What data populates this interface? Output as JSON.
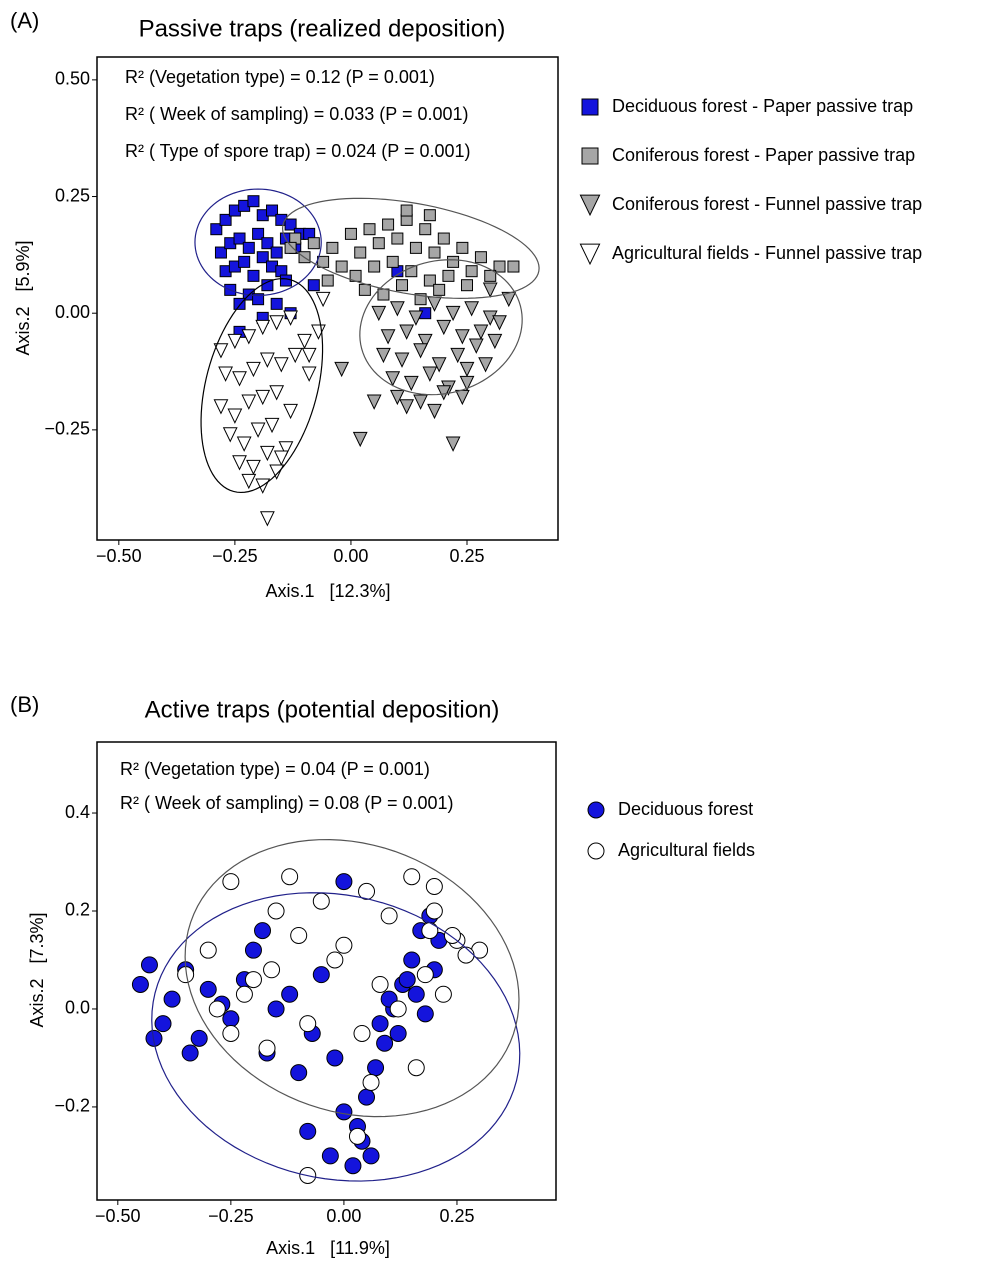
{
  "chart_data": [
    {
      "type": "scatter",
      "panel_label": "(A)",
      "title": "Passive traps (realized deposition)",
      "x_label": "Axis.1   [12.3%]",
      "y_label": "Axis.2   [5.9%]",
      "annotations": [
        "R² (Vegetation type) = 0.12 (P = 0.001)",
        "R² ( Week of sampling) = 0.033 (P = 0.001)",
        "R² ( Type of spore trap) = 0.024 (P = 0.001)"
      ],
      "xlim": [
        -0.547,
        0.446
      ],
      "ylim": [
        -0.486,
        0.549
      ],
      "xticks": [
        {
          "value": -0.5,
          "label": "−0.50"
        },
        {
          "value": -0.25,
          "label": "−0.25"
        },
        {
          "value": 0,
          "label": "0.00"
        },
        {
          "value": 0.25,
          "label": "0.25"
        }
      ],
      "yticks": [
        {
          "value": -0.25,
          "label": "−0.25"
        },
        {
          "value": 0,
          "label": "0.00"
        },
        {
          "value": 0.25,
          "label": "0.25"
        },
        {
          "value": 0.5,
          "label": "0.50"
        }
      ],
      "grid": false,
      "legend": "right",
      "series": [
        {
          "name": "Deciduous forest - Paper passive trap",
          "marker": "square",
          "color": "#1414dc",
          "x": [
            -0.29,
            -0.27,
            -0.25,
            -0.23,
            -0.21,
            -0.19,
            -0.17,
            -0.15,
            -0.13,
            -0.11,
            -0.28,
            -0.26,
            -0.24,
            -0.22,
            -0.2,
            -0.18,
            -0.16,
            -0.14,
            -0.12,
            -0.27,
            -0.25,
            -0.23,
            -0.21,
            -0.19,
            -0.17,
            -0.15,
            -0.26,
            -0.22,
            -0.18,
            -0.14,
            -0.2,
            -0.24,
            -0.16,
            -0.09,
            -0.24,
            -0.19,
            -0.13,
            0.1,
            -0.08,
            0.16
          ],
          "y": [
            0.18,
            0.2,
            0.22,
            0.23,
            0.24,
            0.21,
            0.22,
            0.2,
            0.19,
            0.17,
            0.13,
            0.15,
            0.16,
            0.14,
            0.17,
            0.15,
            0.13,
            0.16,
            0.14,
            0.09,
            0.1,
            0.11,
            0.08,
            0.12,
            0.1,
            0.09,
            0.05,
            0.04,
            0.06,
            0.07,
            0.03,
            0.02,
            0.02,
            0.17,
            -0.04,
            -0.01,
            0.0,
            0.09,
            0.06,
            0.0
          ],
          "ellipse": {
            "cx": -0.2,
            "cy": 0.152,
            "rx": 0.136,
            "ry": 0.114,
            "angle": 0,
            "color": "#20208a"
          }
        },
        {
          "name": "Coniferous forest - Paper passive trap",
          "marker": "square",
          "color": "#a6a6a6",
          "x": [
            -0.12,
            -0.08,
            -0.04,
            0.0,
            0.04,
            0.08,
            0.12,
            0.16,
            0.2,
            0.24,
            0.28,
            0.32,
            -0.1,
            -0.06,
            -0.02,
            0.02,
            0.06,
            0.1,
            0.14,
            0.18,
            0.22,
            0.26,
            0.3,
            -0.05,
            0.01,
            0.05,
            0.09,
            0.13,
            0.17,
            0.21,
            0.25,
            0.03,
            0.07,
            0.11,
            0.15,
            0.19,
            0.12,
            0.17,
            0.35,
            -0.13
          ],
          "y": [
            0.16,
            0.15,
            0.14,
            0.17,
            0.18,
            0.19,
            0.2,
            0.18,
            0.16,
            0.14,
            0.12,
            0.1,
            0.12,
            0.11,
            0.1,
            0.13,
            0.15,
            0.16,
            0.14,
            0.13,
            0.11,
            0.09,
            0.08,
            0.07,
            0.08,
            0.1,
            0.11,
            0.09,
            0.07,
            0.08,
            0.06,
            0.05,
            0.04,
            0.06,
            0.03,
            0.05,
            0.22,
            0.21,
            0.1,
            0.14
          ],
          "ellipse": {
            "cx": 0.129,
            "cy": 0.139,
            "rx": 0.28,
            "ry": 0.097,
            "angle": -10,
            "color": "#555555"
          }
        },
        {
          "name": "Coniferous forest - Funnel passive trap",
          "marker": "triangle-down",
          "color": "#a6a6a6",
          "x": [
            0.06,
            0.1,
            0.14,
            0.18,
            0.22,
            0.26,
            0.3,
            0.34,
            0.08,
            0.12,
            0.16,
            0.2,
            0.24,
            0.28,
            0.32,
            0.07,
            0.11,
            0.15,
            0.19,
            0.23,
            0.27,
            0.31,
            0.09,
            0.13,
            0.17,
            0.21,
            0.25,
            0.29,
            0.05,
            0.1,
            0.15,
            0.2,
            0.25,
            0.12,
            0.18,
            0.24,
            0.02,
            0.22,
            -0.02,
            0.3
          ],
          "y": [
            0.0,
            0.01,
            -0.01,
            0.02,
            0.0,
            0.01,
            -0.01,
            0.03,
            -0.05,
            -0.04,
            -0.06,
            -0.03,
            -0.05,
            -0.04,
            -0.02,
            -0.09,
            -0.1,
            -0.08,
            -0.11,
            -0.09,
            -0.07,
            -0.06,
            -0.14,
            -0.15,
            -0.13,
            -0.16,
            -0.12,
            -0.11,
            -0.19,
            -0.18,
            -0.19,
            -0.17,
            -0.15,
            -0.2,
            -0.21,
            -0.18,
            -0.27,
            -0.28,
            -0.12,
            0.05
          ],
          "ellipse": {
            "cx": 0.194,
            "cy": -0.03,
            "rx": 0.177,
            "ry": 0.142,
            "angle": 15,
            "color": "#555555"
          }
        },
        {
          "name": "Agricultural fields - Funnel passive trap",
          "marker": "triangle-down",
          "color": "#ffffff",
          "x": [
            -0.28,
            -0.25,
            -0.22,
            -0.19,
            -0.16,
            -0.13,
            -0.1,
            -0.07,
            -0.27,
            -0.24,
            -0.21,
            -0.18,
            -0.15,
            -0.12,
            -0.09,
            -0.28,
            -0.25,
            -0.22,
            -0.19,
            -0.16,
            -0.13,
            -0.26,
            -0.23,
            -0.2,
            -0.17,
            -0.14,
            -0.24,
            -0.21,
            -0.18,
            -0.15,
            -0.22,
            -0.19,
            -0.16,
            -0.18,
            -0.06,
            -0.09
          ],
          "y": [
            -0.08,
            -0.06,
            -0.05,
            -0.03,
            -0.02,
            -0.01,
            -0.06,
            -0.04,
            -0.13,
            -0.14,
            -0.12,
            -0.1,
            -0.11,
            -0.09,
            -0.13,
            -0.2,
            -0.22,
            -0.19,
            -0.18,
            -0.17,
            -0.21,
            -0.26,
            -0.28,
            -0.25,
            -0.24,
            -0.29,
            -0.32,
            -0.33,
            -0.3,
            -0.31,
            -0.36,
            -0.37,
            -0.34,
            -0.44,
            0.03,
            -0.09
          ],
          "ellipse": {
            "cx": -0.192,
            "cy": -0.155,
            "rx": 0.235,
            "ry": 0.12,
            "angle": 75,
            "color": "#000000"
          }
        }
      ]
    },
    {
      "type": "scatter",
      "panel_label": "(B)",
      "title": "Active traps (potential deposition)",
      "x_label": "Axis.1   [11.9%]",
      "y_label": "Axis.2   [7.3%]",
      "annotations": [
        "R² (Vegetation type) = 0.04 (P = 0.001)",
        "R² ( Week of sampling) = 0.08 (P = 0.001)"
      ],
      "xlim": [
        -0.546,
        0.469
      ],
      "ylim": [
        -0.39,
        0.545
      ],
      "xticks": [
        {
          "value": -0.5,
          "label": "−0.50"
        },
        {
          "value": -0.25,
          "label": "−0.25"
        },
        {
          "value": 0,
          "label": "0.00"
        },
        {
          "value": 0.25,
          "label": "0.25"
        }
      ],
      "yticks": [
        {
          "value": -0.2,
          "label": "−0.2"
        },
        {
          "value": 0,
          "label": "0.0"
        },
        0.2,
        0.4
      ],
      "grid": false,
      "legend": "right",
      "series": [
        {
          "name": "Deciduous forest",
          "marker": "circle",
          "color": "#1414dc",
          "x": [
            -0.45,
            -0.43,
            -0.4,
            -0.38,
            -0.35,
            -0.32,
            -0.3,
            -0.27,
            -0.25,
            -0.22,
            -0.2,
            -0.17,
            -0.15,
            -0.12,
            -0.1,
            -0.07,
            -0.05,
            -0.02,
            0.0,
            0.03,
            0.05,
            0.07,
            0.09,
            0.11,
            0.13,
            0.15,
            0.17,
            0.19,
            0.21,
            0.08,
            0.1,
            0.12,
            0.14,
            0.16,
            0.18,
            0.2,
            0.04,
            0.06,
            0.02,
            -0.03,
            -0.08,
            -0.34,
            -0.42,
            -0.18,
            0.0
          ],
          "y": [
            0.05,
            0.09,
            -0.03,
            0.02,
            0.08,
            -0.06,
            0.04,
            0.01,
            -0.02,
            0.06,
            0.12,
            -0.09,
            0.0,
            0.03,
            -0.13,
            -0.05,
            0.07,
            -0.1,
            -0.21,
            -0.24,
            -0.18,
            -0.12,
            -0.07,
            0.0,
            0.05,
            0.1,
            0.16,
            0.19,
            0.14,
            -0.03,
            0.02,
            -0.05,
            0.06,
            0.03,
            -0.01,
            0.08,
            -0.27,
            -0.3,
            -0.32,
            -0.3,
            -0.25,
            -0.09,
            -0.06,
            0.16,
            0.26
          ],
          "ellipse": {
            "cx": -0.018,
            "cy": -0.057,
            "rx": 0.41,
            "ry": 0.29,
            "angle": -10,
            "color": "#20208a"
          }
        },
        {
          "name": "Agricultural fields",
          "marker": "circle",
          "color": "#ffffff",
          "x": [
            -0.35,
            -0.3,
            -0.25,
            -0.2,
            -0.15,
            -0.1,
            -0.05,
            0.0,
            0.05,
            0.1,
            0.15,
            0.2,
            0.25,
            0.3,
            -0.28,
            -0.22,
            -0.16,
            -0.08,
            -0.02,
            0.04,
            0.08,
            0.12,
            0.18,
            0.22,
            0.27,
            -0.25,
            -0.17,
            0.16,
            0.2,
            -0.08,
            0.03,
            0.06,
            -0.12,
            0.24,
            0.19
          ],
          "y": [
            0.07,
            0.12,
            0.26,
            0.06,
            0.2,
            0.15,
            0.22,
            0.13,
            0.24,
            0.19,
            0.27,
            0.2,
            0.14,
            0.12,
            0.0,
            0.03,
            0.08,
            -0.03,
            0.1,
            -0.05,
            0.05,
            0.0,
            0.07,
            0.03,
            0.11,
            -0.05,
            -0.08,
            -0.12,
            0.25,
            -0.34,
            -0.26,
            -0.15,
            0.27,
            0.15,
            0.16
          ],
          "ellipse": {
            "cx": 0.018,
            "cy": 0.063,
            "rx": 0.375,
            "ry": 0.275,
            "angle": -15,
            "color": "#555555"
          }
        }
      ]
    }
  ]
}
